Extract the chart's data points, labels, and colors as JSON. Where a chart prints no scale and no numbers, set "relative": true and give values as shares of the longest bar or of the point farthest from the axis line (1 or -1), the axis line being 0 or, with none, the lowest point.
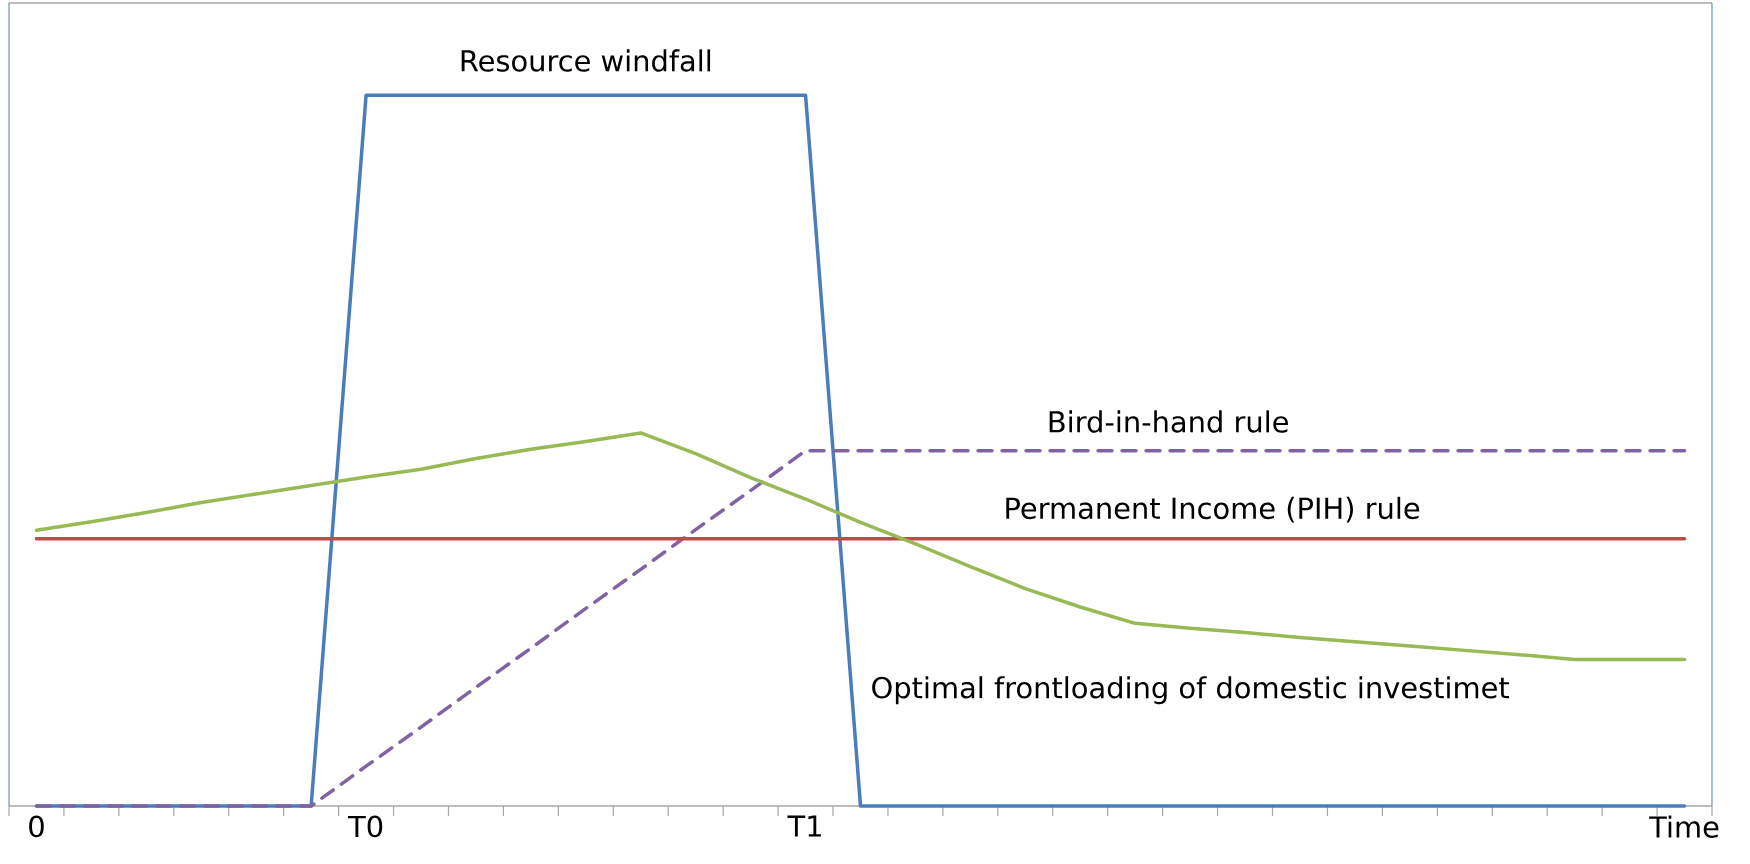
{
  "chart_data": {
    "type": "line",
    "relative": true,
    "marker": "none",
    "categories": [
      "0",
      null,
      null,
      null,
      null,
      null,
      "T0",
      null,
      null,
      null,
      null,
      null,
      null,
      null,
      "T1",
      null,
      null,
      null,
      null,
      null,
      null,
      null,
      null,
      null,
      null,
      null,
      null,
      null,
      null,
      null,
      "Time"
    ],
    "series": [
      {
        "name": "Resource windfall",
        "color": "#4a7ebb",
        "line_style": "solid",
        "values": [
          0,
          0,
          0,
          0,
          0,
          0,
          1,
          1,
          1,
          1,
          1,
          1,
          1,
          1,
          1,
          0,
          0,
          0,
          0,
          0,
          0,
          0,
          0,
          0,
          0,
          0,
          0,
          0,
          0,
          0,
          0
        ]
      },
      {
        "name": "Bird-in-hand rule",
        "color": "#8064a2",
        "line_style": "dashed",
        "values": [
          0,
          0,
          0,
          0,
          0,
          0,
          0.056,
          0.111,
          0.167,
          0.222,
          0.278,
          0.333,
          0.389,
          0.444,
          0.5,
          0.5,
          0.5,
          0.5,
          0.5,
          0.5,
          0.5,
          0.5,
          0.5,
          0.5,
          0.5,
          0.5,
          0.5,
          0.5,
          0.5,
          0.5,
          0.5
        ]
      },
      {
        "name": "Permanent Income (PIH) rule",
        "color": "#be4b48",
        "line_style": "solid",
        "values": [
          0.376,
          0.376,
          0.376,
          0.376,
          0.376,
          0.376,
          0.376,
          0.376,
          0.376,
          0.376,
          0.376,
          0.376,
          0.376,
          0.376,
          0.376,
          0.376,
          0.376,
          0.376,
          0.376,
          0.376,
          0.376,
          0.376,
          0.376,
          0.376,
          0.376,
          0.376,
          0.376,
          0.376,
          0.376,
          0.376,
          0.376
        ]
      },
      {
        "name": "Optimal frontloading of domestic investimet",
        "color": "#98b954",
        "line_style": "solid",
        "values": [
          0.388,
          0.4,
          0.413,
          0.427,
          0.439,
          0.451,
          0.463,
          0.474,
          0.489,
          0.502,
          0.513,
          0.525,
          0.496,
          0.462,
          0.432,
          0.399,
          0.369,
          0.337,
          0.306,
          0.28,
          0.257,
          0.25,
          0.244,
          0.237,
          0.231,
          0.225,
          0.219,
          0.213,
          0.206,
          0.206,
          0.206
        ]
      }
    ]
  }
}
